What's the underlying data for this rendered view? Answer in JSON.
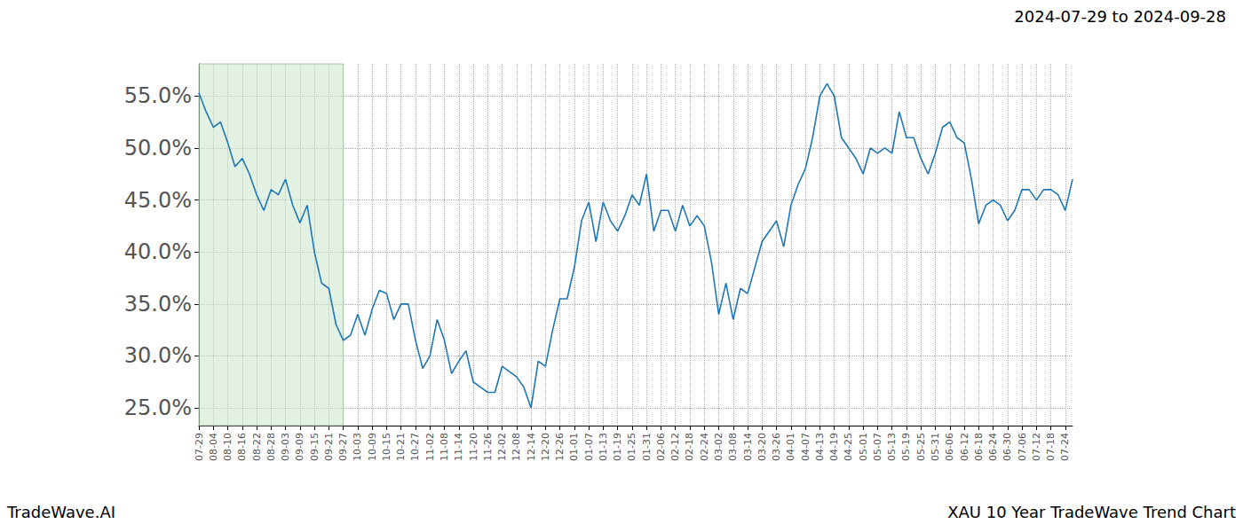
{
  "chart_data": {
    "type": "line",
    "title": "2024-07-29 to 2024-09-28",
    "annotations": [
      "TradeWave.AI",
      "XAU 10 Year TradeWave Trend Chart"
    ],
    "categories": [
      "07-29",
      null,
      "08-04",
      null,
      "08-10",
      null,
      "08-16",
      null,
      "08-22",
      null,
      "08-28",
      null,
      "09-03",
      null,
      "09-09",
      null,
      "09-15",
      null,
      "09-21",
      null,
      "09-27",
      null,
      "10-03",
      null,
      "10-09",
      null,
      "10-15",
      null,
      "10-21",
      null,
      "10-27",
      null,
      "11-02",
      null,
      "11-08",
      null,
      "11-14",
      null,
      "11-20",
      null,
      "11-26",
      null,
      "12-02",
      null,
      "12-08",
      null,
      "12-14",
      null,
      "12-20",
      null,
      "12-26",
      null,
      "01-01",
      null,
      "01-07",
      null,
      "01-13",
      null,
      "01-19",
      null,
      "01-25",
      null,
      "01-31",
      null,
      "02-06",
      null,
      "02-12",
      null,
      "02-18",
      null,
      "02-24",
      null,
      "03-02",
      null,
      "03-08",
      null,
      "03-14",
      null,
      "03-20",
      null,
      "03-26",
      null,
      "04-01",
      null,
      "04-07",
      null,
      "04-13",
      null,
      "04-19",
      null,
      "04-25",
      null,
      "05-01",
      null,
      "05-07",
      null,
      "05-13",
      null,
      "05-19",
      null,
      "05-25",
      null,
      "05-31",
      null,
      "06-06",
      null,
      "06-12",
      null,
      "06-18",
      null,
      "06-24",
      null,
      "06-30",
      null,
      "07-06",
      null,
      "07-12",
      null,
      "07-18",
      null,
      "07-24",
      null
    ],
    "values": [
      55.3,
      53.5,
      52.0,
      52.5,
      50.5,
      48.2,
      49.0,
      47.5,
      45.5,
      44.0,
      46.0,
      45.5,
      47.0,
      44.5,
      42.8,
      44.5,
      40.0,
      37.0,
      36.5,
      33.0,
      31.5,
      32.0,
      34.0,
      32.0,
      34.5,
      36.3,
      36.0,
      33.5,
      35.0,
      35.0,
      31.5,
      28.8,
      30.0,
      33.5,
      31.5,
      28.3,
      29.5,
      30.5,
      27.5,
      27.0,
      26.5,
      26.5,
      29.0,
      28.5,
      28.0,
      27.0,
      25.0,
      29.5,
      29.0,
      32.5,
      35.5,
      35.5,
      38.5,
      43.0,
      44.8,
      41.0,
      44.8,
      43.0,
      42.0,
      43.5,
      45.5,
      44.5,
      47.5,
      42.0,
      44.0,
      44.0,
      42.0,
      44.5,
      42.5,
      43.5,
      42.5,
      39.0,
      34.0,
      37.0,
      33.5,
      36.5,
      36.0,
      38.5,
      41.0,
      42.0,
      43.0,
      40.5,
      44.5,
      46.5,
      48.0,
      51.0,
      55.0,
      56.2,
      55.0,
      51.0,
      50.0,
      49.0,
      47.5,
      50.0,
      49.5,
      50.0,
      49.5,
      53.5,
      51.0,
      51.0,
      49.0,
      47.5,
      49.5,
      52.0,
      52.5,
      51.0,
      50.5,
      47.0,
      42.7,
      44.5,
      45.0,
      44.5,
      43.0,
      44.0,
      46.0,
      46.0,
      45.0,
      46.0,
      46.0,
      45.5,
      44.0,
      47.0
    ],
    "color": "#1f77b4",
    "highlight": {
      "from": "07-29",
      "to": "09-27"
    },
    "ylim": [
      23.3,
      58.1
    ],
    "yticks": [
      {
        "value": 25,
        "label": "25.0%"
      },
      {
        "value": 30,
        "label": "30.0%"
      },
      {
        "value": 35,
        "label": "35.0%"
      },
      {
        "value": 40,
        "label": "40.0%"
      },
      {
        "value": 45,
        "label": "45.0%"
      },
      {
        "value": 50,
        "label": "50.0%"
      },
      {
        "value": 55,
        "label": "55.0%"
      }
    ],
    "grid": true
  }
}
